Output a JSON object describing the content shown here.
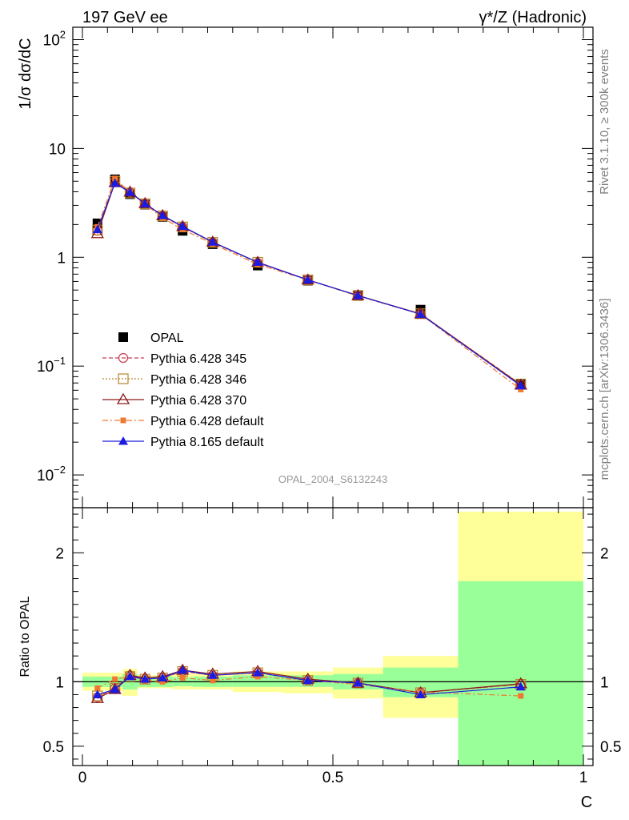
{
  "header": {
    "left_title": "197 GeV ee",
    "right_title": "γ*/Z (Hadronic)"
  },
  "side_labels": {
    "rivet": "Rivet 3.1.10, ≥ 300k events",
    "mcplots": "mcplots.cern.ch [arXiv:1306.3436]"
  },
  "analysis_id": "OPAL_2004_S6132243",
  "chart_data": [
    {
      "type": "line",
      "panel": "main",
      "title": "197 GeV ee",
      "xlabel": "C",
      "ylabel": "1/σ dσ/dC",
      "yscale": "log",
      "xlim": [
        0,
        1
      ],
      "ylim": [
        0.005,
        130
      ],
      "y_ticks": [
        {
          "value": 0.01,
          "base": "10",
          "exp": "−2"
        },
        {
          "value": 0.1,
          "base": "10",
          "exp": "−1"
        },
        {
          "value": 1,
          "label": "1"
        },
        {
          "value": 10,
          "label": "10"
        },
        {
          "value": 100,
          "base": "10",
          "exp": "2"
        }
      ],
      "x": [
        0.03,
        0.065,
        0.095,
        0.125,
        0.16,
        0.2,
        0.26,
        0.35,
        0.45,
        0.55,
        0.675,
        0.875
      ],
      "series": [
        {
          "name": "OPAL",
          "color": "#000000",
          "marker": "square-filled",
          "dash": "none",
          "values": [
            2.05,
            5.2,
            3.8,
            3.05,
            2.35,
            1.75,
            1.32,
            0.84,
            0.61,
            0.45,
            0.33,
            0.069
          ]
        },
        {
          "name": "Pythia 6.428 345",
          "color": "#c83c50",
          "marker": "circle-open",
          "dash": "5,3",
          "values": [
            1.75,
            5.0,
            3.95,
            3.1,
            2.4,
            1.9,
            1.37,
            0.89,
            0.62,
            0.445,
            0.302,
            0.068
          ]
        },
        {
          "name": "Pythia 6.428 346",
          "color": "#b8862b",
          "marker": "square-open",
          "dash": "2,2",
          "values": [
            1.78,
            5.0,
            3.9,
            3.1,
            2.4,
            1.9,
            1.37,
            0.9,
            0.62,
            0.445,
            0.303,
            0.068
          ]
        },
        {
          "name": "Pythia 6.428 370",
          "color": "#8b1a1a",
          "marker": "triangle-open",
          "dash": "none",
          "values": [
            1.65,
            4.85,
            3.98,
            3.12,
            2.42,
            1.92,
            1.38,
            0.9,
            0.62,
            0.445,
            0.302,
            0.067
          ]
        },
        {
          "name": "Pythia 6.428 default",
          "color": "#f07830",
          "marker": "square-small-filled",
          "dash": "7,3,2,3",
          "values": [
            1.9,
            5.3,
            3.95,
            3.08,
            2.3,
            1.8,
            1.33,
            0.86,
            0.62,
            0.44,
            0.3,
            0.061
          ]
        },
        {
          "name": "Pythia 8.165 default",
          "color": "#1c1ce0",
          "marker": "triangle-filled",
          "dash": "none",
          "values": [
            1.8,
            4.8,
            3.95,
            3.1,
            2.42,
            1.92,
            1.38,
            0.9,
            0.62,
            0.445,
            0.3,
            0.066
          ]
        }
      ]
    },
    {
      "type": "line",
      "panel": "ratio",
      "xlabel": "C",
      "ylabel": "Ratio to OPAL",
      "xlim": [
        0,
        1
      ],
      "ylim": [
        0.35,
        2.35
      ],
      "x_ticks": [
        {
          "value": 0,
          "label": "0"
        },
        {
          "value": 0.5,
          "label": "0.5"
        },
        {
          "value": 1,
          "label": "1"
        }
      ],
      "y_ticks": [
        {
          "value": 0.5,
          "label": "0.5"
        },
        {
          "value": 1,
          "label": "1"
        },
        {
          "value": 2,
          "label": "2"
        }
      ],
      "bands": [
        {
          "x0": 0.0,
          "x1": 0.045,
          "stat_lo": 0.96,
          "stat_hi": 1.04,
          "tot_lo": 0.93,
          "tot_hi": 1.07
        },
        {
          "x0": 0.045,
          "x1": 0.08,
          "stat_lo": 0.96,
          "stat_hi": 1.04,
          "tot_lo": 0.93,
          "tot_hi": 1.07
        },
        {
          "x0": 0.08,
          "x1": 0.11,
          "stat_lo": 0.94,
          "stat_hi": 1.06,
          "tot_lo": 0.89,
          "tot_hi": 1.1
        },
        {
          "x0": 0.11,
          "x1": 0.14,
          "stat_lo": 0.96,
          "stat_hi": 1.04,
          "tot_lo": 0.95,
          "tot_hi": 1.05
        },
        {
          "x0": 0.14,
          "x1": 0.18,
          "stat_lo": 0.96,
          "stat_hi": 1.04,
          "tot_lo": 0.95,
          "tot_hi": 1.05
        },
        {
          "x0": 0.18,
          "x1": 0.22,
          "stat_lo": 0.965,
          "stat_hi": 1.035,
          "tot_lo": 0.94,
          "tot_hi": 1.06
        },
        {
          "x0": 0.22,
          "x1": 0.3,
          "stat_lo": 0.96,
          "stat_hi": 1.04,
          "tot_lo": 0.94,
          "tot_hi": 1.06
        },
        {
          "x0": 0.3,
          "x1": 0.4,
          "stat_lo": 0.96,
          "stat_hi": 1.05,
          "tot_lo": 0.92,
          "tot_hi": 1.08
        },
        {
          "x0": 0.4,
          "x1": 0.5,
          "stat_lo": 0.96,
          "stat_hi": 1.05,
          "tot_lo": 0.91,
          "tot_hi": 1.08
        },
        {
          "x0": 0.5,
          "x1": 0.6,
          "stat_lo": 0.94,
          "stat_hi": 1.06,
          "tot_lo": 0.87,
          "tot_hi": 1.11
        },
        {
          "x0": 0.6,
          "x1": 0.75,
          "stat_lo": 0.88,
          "stat_hi": 1.11,
          "tot_lo": 0.72,
          "tot_hi": 1.2
        },
        {
          "x0": 0.75,
          "x1": 1.0,
          "stat_lo": 0.35,
          "stat_hi": 1.78,
          "tot_lo": 0.35,
          "tot_hi": 2.32
        }
      ],
      "series": [
        {
          "name": "Pythia 6.428 345",
          "values": [
            0.88,
            0.95,
            1.05,
            1.02,
            1.03,
            1.08,
            1.05,
            1.07,
            1.01,
            0.99,
            0.915,
            0.98
          ]
        },
        {
          "name": "Pythia 6.428 346",
          "values": [
            0.89,
            0.95,
            1.04,
            1.02,
            1.03,
            1.08,
            1.05,
            1.07,
            1.01,
            0.99,
            0.915,
            0.98
          ]
        },
        {
          "name": "Pythia 6.428 370",
          "values": [
            0.87,
            0.94,
            1.05,
            1.03,
            1.04,
            1.09,
            1.06,
            1.08,
            1.02,
            0.99,
            0.915,
            0.985
          ]
        },
        {
          "name": "Pythia 6.428 default",
          "values": [
            0.95,
            1.02,
            1.04,
            1.01,
            1.0,
            1.03,
            1.01,
            1.04,
            1.01,
            0.98,
            0.92,
            0.89
          ]
        },
        {
          "name": "Pythia 8.165 default",
          "values": [
            0.9,
            0.94,
            1.04,
            1.02,
            1.03,
            1.09,
            1.05,
            1.07,
            1.01,
            0.99,
            0.9,
            0.96
          ]
        }
      ]
    }
  ]
}
